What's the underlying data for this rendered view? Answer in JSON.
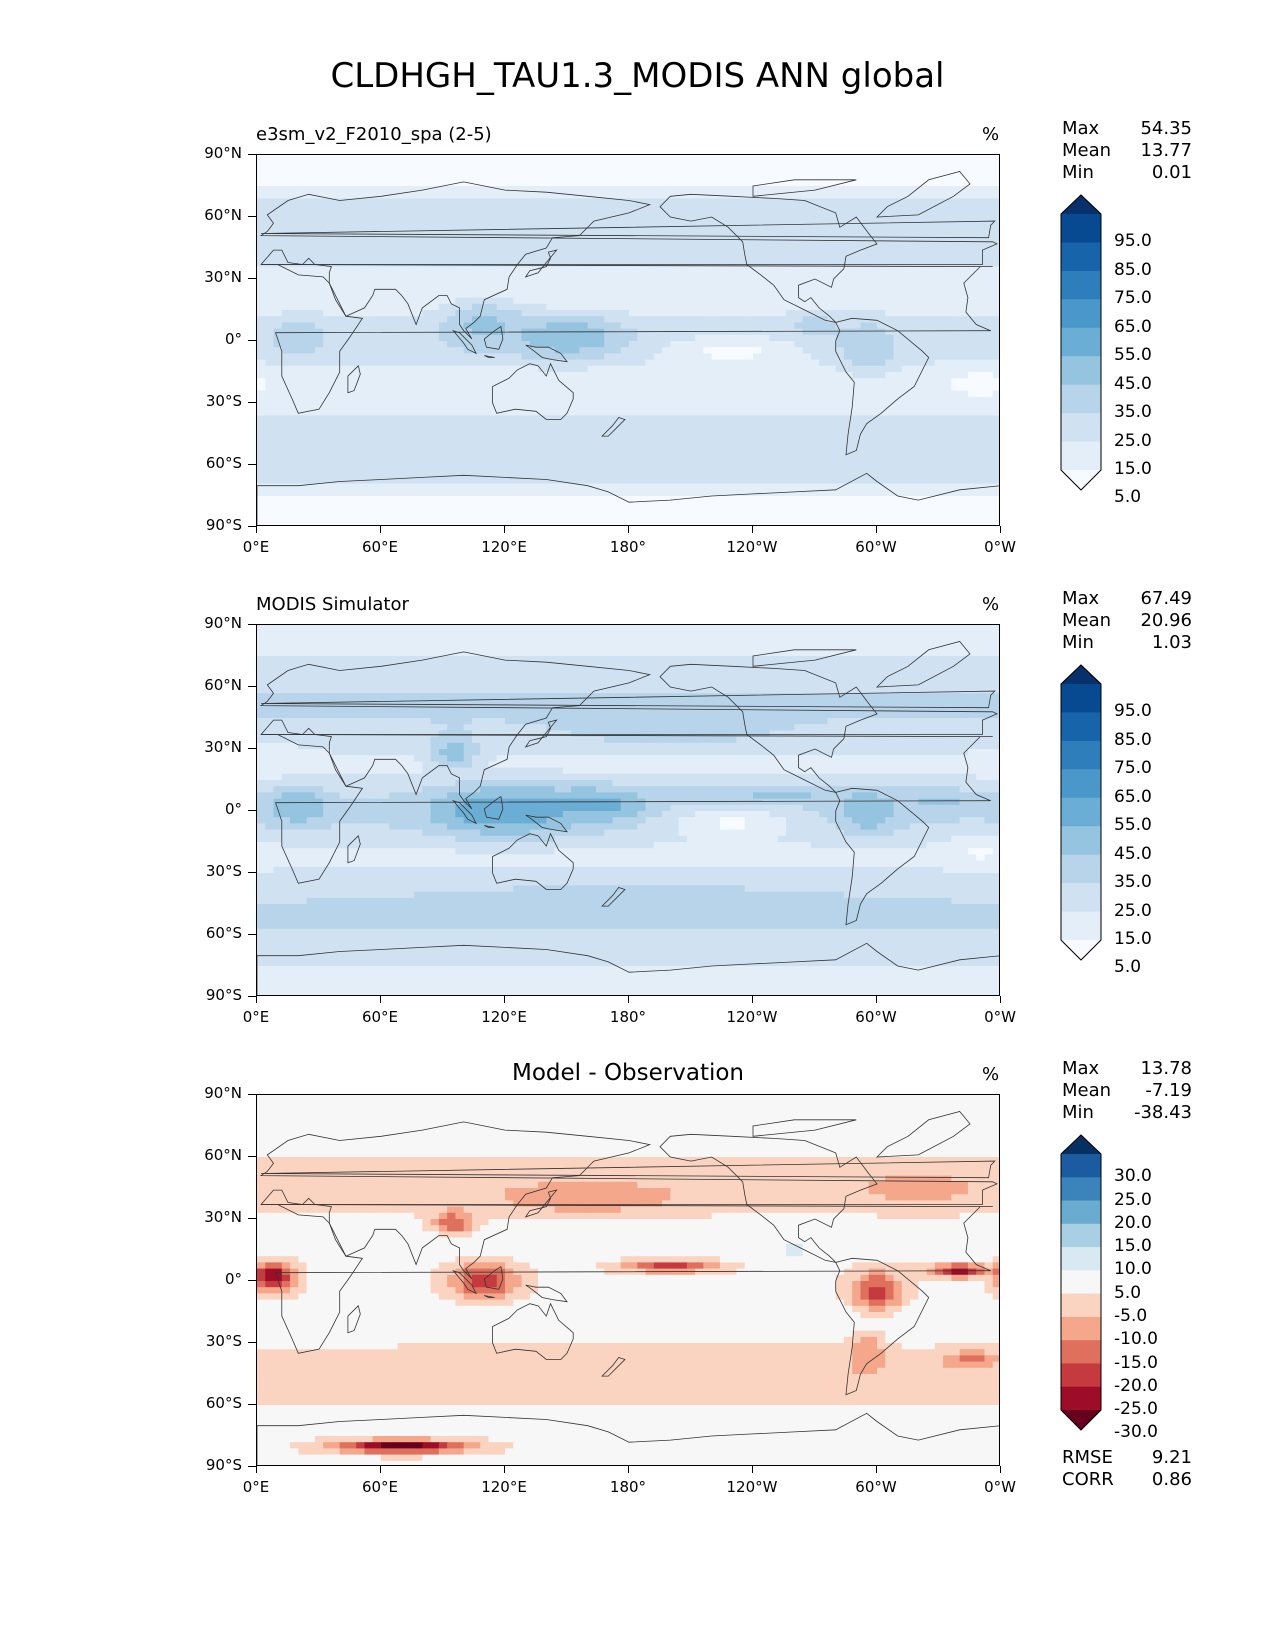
{
  "title": "CLDHGH_TAU1.3_MODIS ANN global",
  "axes": {
    "lat_labels": [
      "90°N",
      "60°N",
      "30°N",
      "0°",
      "30°S",
      "60°S",
      "90°S"
    ],
    "lon_labels": [
      "0°E",
      "60°E",
      "120°E",
      "180°",
      "120°W",
      "60°W",
      "0°W"
    ]
  },
  "colors": {
    "blues": [
      "#f7fbff",
      "#e3eef9",
      "#d0e2f2",
      "#b7d4ea",
      "#94c4df",
      "#6aaed6",
      "#4a98c9",
      "#2e7ebc",
      "#1764ab",
      "#084a92",
      "#08306b"
    ],
    "diverging": [
      "#67001f",
      "#9d0d28",
      "#c43a3e",
      "#e0705e",
      "#f4a78b",
      "#fbd4c1",
      "#f7f7f7",
      "#d9e9f1",
      "#a9cfe5",
      "#6aabd0",
      "#3a83bb",
      "#1a5c9f",
      "#053061"
    ],
    "land_outline": "#333333"
  },
  "chart_data": [
    {
      "type": "heatmap",
      "title": "e3sm_v2_F2010_spa (2-5)",
      "units": "%",
      "stats": {
        "max_label": "Max",
        "max": "54.35",
        "mean_label": "Mean",
        "mean": "13.77",
        "min_label": "Min",
        "min": "0.01"
      },
      "colorbar_levels": [
        "95.0",
        "85.0",
        "75.0",
        "65.0",
        "55.0",
        "45.0",
        "35.0",
        "25.0",
        "15.0",
        "5.0"
      ],
      "x_range": [
        0,
        360
      ],
      "y_range": [
        -90,
        90
      ],
      "features": [
        {
          "lon": 150,
          "lat": 2,
          "value": 45,
          "spread_lon": 28,
          "spread_lat": 10
        },
        {
          "lon": 110,
          "lat": 8,
          "value": 38,
          "spread_lon": 20,
          "spread_lat": 12
        },
        {
          "lon": 20,
          "lat": 2,
          "value": 35,
          "spread_lon": 12,
          "spread_lat": 10
        },
        {
          "lon": 295,
          "lat": -3,
          "value": 35,
          "spread_lon": 14,
          "spread_lat": 12
        },
        {
          "lon": 270,
          "lat": 8,
          "value": 30,
          "spread_lon": 12,
          "spread_lat": 6
        },
        {
          "lon": 230,
          "lat": -5,
          "value": 2,
          "spread_lon": 30,
          "spread_lat": 7
        },
        {
          "lon": 350,
          "lat": -20,
          "value": 3,
          "spread_lon": 15,
          "spread_lat": 8
        },
        {
          "lon": 10,
          "lat": 25,
          "value": 8,
          "spread_lon": 20,
          "spread_lat": 8
        }
      ]
    },
    {
      "type": "heatmap",
      "title": "MODIS Simulator",
      "units": "%",
      "stats": {
        "max_label": "Max",
        "max": "67.49",
        "mean_label": "Mean",
        "mean": "20.96",
        "min_label": "Min",
        "min": "1.03"
      },
      "colorbar_levels": [
        "95.0",
        "85.0",
        "75.0",
        "65.0",
        "55.0",
        "45.0",
        "35.0",
        "25.0",
        "15.0",
        "5.0"
      ],
      "x_range": [
        0,
        360
      ],
      "y_range": [
        -90,
        90
      ],
      "features": [
        {
          "lon": 120,
          "lat": 0,
          "value": 55,
          "spread_lon": 35,
          "spread_lat": 12
        },
        {
          "lon": 165,
          "lat": 3,
          "value": 50,
          "spread_lon": 25,
          "spread_lat": 8
        },
        {
          "lon": 20,
          "lat": 2,
          "value": 45,
          "spread_lon": 14,
          "spread_lat": 9
        },
        {
          "lon": 295,
          "lat": 0,
          "value": 45,
          "spread_lon": 14,
          "spread_lat": 10
        },
        {
          "lon": 250,
          "lat": 8,
          "value": 38,
          "spread_lon": 40,
          "spread_lat": 5
        },
        {
          "lon": 330,
          "lat": 5,
          "value": 38,
          "spread_lon": 20,
          "spread_lat": 5
        },
        {
          "lon": 95,
          "lat": 28,
          "value": 40,
          "spread_lon": 12,
          "spread_lat": 8
        },
        {
          "lon": 230,
          "lat": -6,
          "value": 3,
          "spread_lon": 30,
          "spread_lat": 8
        },
        {
          "lon": 350,
          "lat": -20,
          "value": 4,
          "spread_lon": 14,
          "spread_lat": 8
        },
        {
          "lon": 10,
          "lat": 25,
          "value": 10,
          "spread_lon": 20,
          "spread_lat": 8
        },
        {
          "lon": 200,
          "lat": 40,
          "value": 35,
          "spread_lon": 40,
          "spread_lat": 8
        },
        {
          "lon": 180,
          "lat": -45,
          "value": 33,
          "spread_lon": 80,
          "spread_lat": 8
        }
      ]
    },
    {
      "type": "heatmap",
      "title": "Model - Observation",
      "units": "%",
      "stats": {
        "max_label": "Max",
        "max": "13.78",
        "mean_label": "Mean",
        "mean": "-7.19",
        "min_label": "Min",
        "min": "-38.43"
      },
      "metrics": {
        "rmse_label": "RMSE",
        "rmse": "9.21",
        "corr_label": "CORR",
        "corr": "0.86"
      },
      "colorbar_levels": [
        "30.0",
        "25.0",
        "20.0",
        "15.0",
        "10.0",
        "5.0",
        "-5.0",
        "-10.0",
        "-15.0",
        "-20.0",
        "-25.0",
        "-30.0"
      ],
      "x_range": [
        0,
        360
      ],
      "y_range": [
        -90,
        90
      ],
      "features": [
        {
          "lon": 8,
          "lat": 2,
          "value": -30,
          "spread_lon": 10,
          "spread_lat": 7
        },
        {
          "lon": 110,
          "lat": 0,
          "value": -25,
          "spread_lon": 15,
          "spread_lat": 8
        },
        {
          "lon": 95,
          "lat": 28,
          "value": -20,
          "spread_lon": 10,
          "spread_lat": 6
        },
        {
          "lon": 200,
          "lat": 7,
          "value": -22,
          "spread_lon": 22,
          "spread_lat": 3
        },
        {
          "lon": 340,
          "lat": 5,
          "value": -28,
          "spread_lon": 14,
          "spread_lat": 3
        },
        {
          "lon": 300,
          "lat": -5,
          "value": -22,
          "spread_lon": 12,
          "spread_lat": 10
        },
        {
          "lon": 295,
          "lat": -35,
          "value": -15,
          "spread_lon": 8,
          "spread_lat": 10
        },
        {
          "lon": 70,
          "lat": -80,
          "value": -35,
          "spread_lon": 30,
          "spread_lat": 3
        },
        {
          "lon": 160,
          "lat": 40,
          "value": -15,
          "spread_lon": 40,
          "spread_lat": 7
        },
        {
          "lon": 320,
          "lat": 45,
          "value": -12,
          "spread_lon": 30,
          "spread_lat": 8
        },
        {
          "lon": 180,
          "lat": -40,
          "value": -10,
          "spread_lon": 90,
          "spread_lat": 7
        },
        {
          "lon": 345,
          "lat": -38,
          "value": -18,
          "spread_lon": 12,
          "spread_lat": 4
        },
        {
          "lon": 260,
          "lat": 15,
          "value": 8,
          "spread_lon": 6,
          "spread_lat": 4
        }
      ]
    }
  ]
}
